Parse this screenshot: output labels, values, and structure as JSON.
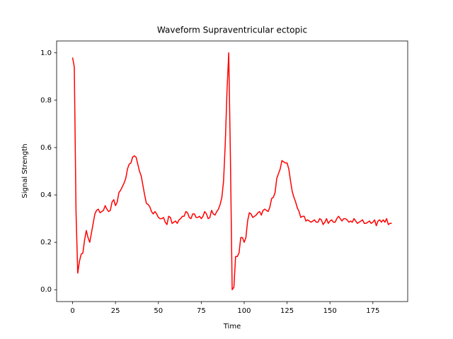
{
  "chart_data": {
    "type": "line",
    "title": "Waveform Supraventricular ectopic",
    "x_label": "Time",
    "y_label": "Signal Strength",
    "x": [
      0,
      1,
      2,
      3,
      4,
      5,
      6,
      7,
      8,
      9,
      10,
      11,
      12,
      13,
      14,
      15,
      16,
      17,
      18,
      19,
      20,
      21,
      22,
      23,
      24,
      25,
      26,
      27,
      28,
      29,
      30,
      31,
      32,
      33,
      34,
      35,
      36,
      37,
      38,
      39,
      40,
      41,
      42,
      43,
      44,
      45,
      46,
      47,
      48,
      49,
      50,
      51,
      52,
      53,
      54,
      55,
      56,
      57,
      58,
      59,
      60,
      61,
      62,
      63,
      64,
      65,
      66,
      67,
      68,
      69,
      70,
      71,
      72,
      73,
      74,
      75,
      76,
      77,
      78,
      79,
      80,
      81,
      82,
      83,
      84,
      85,
      86,
      87,
      88,
      89,
      90,
      91,
      92,
      93,
      94,
      95,
      96,
      97,
      98,
      99,
      100,
      101,
      102,
      103,
      104,
      105,
      106,
      107,
      108,
      109,
      110,
      111,
      112,
      113,
      114,
      115,
      116,
      117,
      118,
      119,
      120,
      121,
      122,
      123,
      124,
      125,
      126,
      127,
      128,
      129,
      130,
      131,
      132,
      133,
      134,
      135,
      136,
      137,
      138,
      139,
      140,
      141,
      142,
      143,
      144,
      145,
      146,
      147,
      148,
      149,
      150,
      151,
      152,
      153,
      154,
      155,
      156,
      157,
      158,
      159,
      160,
      161,
      162,
      163,
      164,
      165,
      166,
      167,
      168,
      169,
      170,
      171,
      172,
      173,
      174,
      175,
      176,
      177,
      178,
      179,
      180,
      181,
      182,
      183,
      184,
      185,
      186
    ],
    "series": [
      {
        "color": "#ff0000",
        "values": [
          0.98,
          0.94,
          0.33,
          0.07,
          0.12,
          0.15,
          0.155,
          0.21,
          0.25,
          0.22,
          0.2,
          0.24,
          0.28,
          0.32,
          0.335,
          0.34,
          0.325,
          0.33,
          0.335,
          0.355,
          0.34,
          0.33,
          0.335,
          0.37,
          0.38,
          0.355,
          0.37,
          0.41,
          0.42,
          0.435,
          0.45,
          0.47,
          0.51,
          0.53,
          0.535,
          0.56,
          0.565,
          0.56,
          0.53,
          0.5,
          0.48,
          0.44,
          0.4,
          0.365,
          0.36,
          0.35,
          0.33,
          0.32,
          0.33,
          0.32,
          0.305,
          0.3,
          0.3,
          0.305,
          0.285,
          0.275,
          0.31,
          0.305,
          0.28,
          0.285,
          0.29,
          0.28,
          0.295,
          0.3,
          0.31,
          0.31,
          0.33,
          0.325,
          0.305,
          0.3,
          0.32,
          0.32,
          0.305,
          0.305,
          0.31,
          0.3,
          0.31,
          0.33,
          0.32,
          0.3,
          0.305,
          0.335,
          0.32,
          0.315,
          0.33,
          0.34,
          0.36,
          0.39,
          0.46,
          0.62,
          0.84,
          1.0,
          0.55,
          0.0,
          0.01,
          0.14,
          0.14,
          0.155,
          0.22,
          0.22,
          0.2,
          0.22,
          0.29,
          0.325,
          0.32,
          0.305,
          0.31,
          0.315,
          0.325,
          0.33,
          0.315,
          0.335,
          0.34,
          0.335,
          0.33,
          0.35,
          0.385,
          0.39,
          0.41,
          0.47,
          0.49,
          0.51,
          0.545,
          0.54,
          0.535,
          0.535,
          0.51,
          0.46,
          0.415,
          0.39,
          0.37,
          0.345,
          0.33,
          0.305,
          0.31,
          0.31,
          0.29,
          0.295,
          0.29,
          0.285,
          0.29,
          0.295,
          0.285,
          0.285,
          0.3,
          0.295,
          0.275,
          0.285,
          0.3,
          0.28,
          0.29,
          0.295,
          0.285,
          0.285,
          0.3,
          0.31,
          0.3,
          0.29,
          0.3,
          0.3,
          0.295,
          0.285,
          0.29,
          0.285,
          0.3,
          0.29,
          0.28,
          0.285,
          0.29,
          0.295,
          0.28,
          0.28,
          0.285,
          0.29,
          0.28,
          0.285,
          0.295,
          0.27,
          0.29,
          0.295,
          0.285,
          0.295,
          0.285,
          0.3,
          0.275,
          0.28,
          0.28
        ]
      }
    ],
    "xlim": [
      -9.3,
      195.3
    ],
    "xticks": [
      0,
      25,
      50,
      75,
      100,
      125,
      150,
      175
    ],
    "ylim": [
      -0.05,
      1.05
    ],
    "yticks": [
      {
        "value": 0,
        "label": "0.0"
      },
      0.2,
      0.4,
      0.6,
      0.8,
      {
        "value": 1,
        "label": "1.0"
      }
    ],
    "grid": false
  }
}
